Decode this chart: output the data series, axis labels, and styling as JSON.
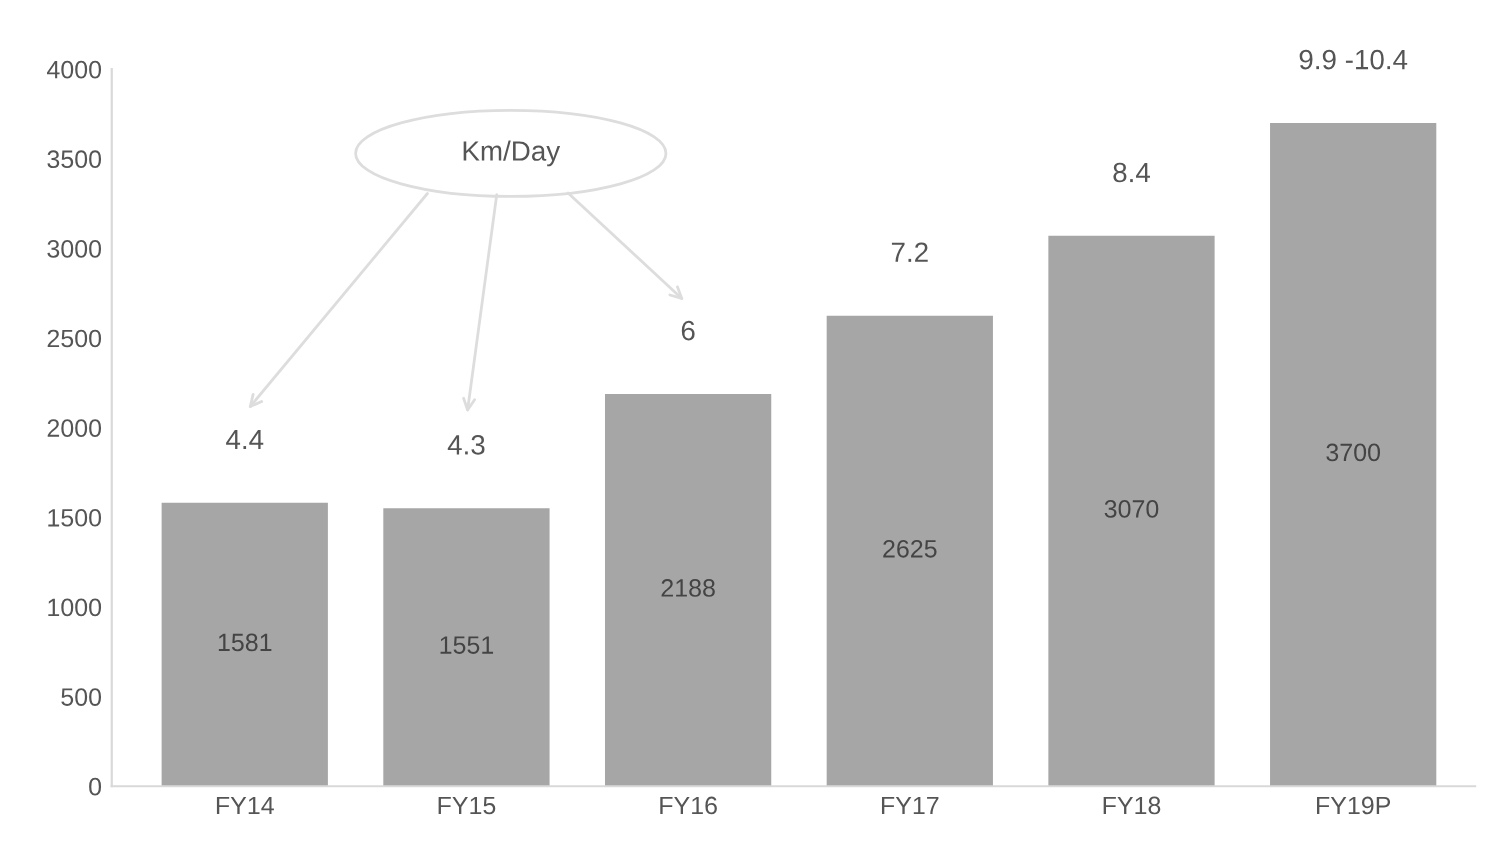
{
  "chart_data": {
    "type": "bar",
    "categories": [
      "FY14",
      "FY15",
      "FY16",
      "FY17",
      "FY18",
      "FY19P"
    ],
    "values": [
      1581,
      1551,
      2188,
      2625,
      3070,
      3700
    ],
    "color": "#a6a6a6",
    "data_labels": true,
    "ylim": [
      0,
      4000
    ],
    "yticks": [
      0,
      500,
      1000,
      1500,
      2000,
      2500,
      3000,
      3500,
      4000
    ],
    "grid": false,
    "annotations": [
      "Km/Day",
      "4.4",
      "4.3",
      "6",
      "7.2",
      "8.4",
      "9.9 -10.4"
    ]
  }
}
